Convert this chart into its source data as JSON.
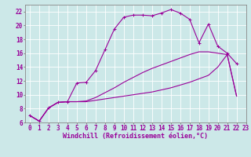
{
  "xlabel": "Windchill (Refroidissement éolien,°C)",
  "bg_color": "#cce8e8",
  "grid_color": "#ffffff",
  "line_color": "#990099",
  "xlim": [
    -0.5,
    23
  ],
  "ylim": [
    6,
    23
  ],
  "xticks": [
    0,
    1,
    2,
    3,
    4,
    5,
    6,
    7,
    8,
    9,
    10,
    11,
    12,
    13,
    14,
    15,
    16,
    17,
    18,
    19,
    20,
    21,
    22,
    23
  ],
  "yticks": [
    6,
    8,
    10,
    12,
    14,
    16,
    18,
    20,
    22
  ],
  "line1_x": [
    0,
    1,
    2,
    3,
    4,
    5,
    6,
    7,
    8,
    9,
    10,
    11,
    12,
    13,
    14,
    15,
    16,
    17,
    18,
    19,
    20,
    21,
    22
  ],
  "line1_y": [
    7.0,
    6.2,
    8.1,
    8.9,
    9.0,
    11.7,
    11.8,
    13.5,
    16.5,
    19.5,
    21.2,
    21.5,
    21.5,
    21.4,
    21.8,
    22.3,
    21.8,
    20.9,
    17.5,
    20.2,
    17.0,
    16.0,
    14.5
  ],
  "line2_x": [
    0,
    1,
    2,
    3,
    4,
    5,
    6,
    7,
    8,
    9,
    10,
    11,
    12,
    13,
    14,
    15,
    16,
    17,
    18,
    19,
    20,
    21,
    22
  ],
  "line2_y": [
    7.0,
    6.2,
    8.1,
    8.9,
    9.0,
    9.0,
    9.0,
    9.2,
    9.4,
    9.6,
    9.8,
    10.0,
    10.2,
    10.4,
    10.7,
    11.0,
    11.4,
    11.8,
    12.3,
    12.8,
    14.0,
    15.8,
    9.8
  ],
  "line3_x": [
    0,
    1,
    2,
    3,
    4,
    5,
    6,
    7,
    8,
    9,
    10,
    11,
    12,
    13,
    14,
    15,
    16,
    17,
    18,
    19,
    20,
    21,
    22
  ],
  "line3_y": [
    7.0,
    6.2,
    8.1,
    8.9,
    9.0,
    9.0,
    9.1,
    9.6,
    10.3,
    11.0,
    11.8,
    12.5,
    13.2,
    13.8,
    14.3,
    14.8,
    15.3,
    15.8,
    16.2,
    16.2,
    16.0,
    15.8,
    9.8
  ],
  "tick_fontsize": 5.5,
  "label_fontsize": 6.0
}
